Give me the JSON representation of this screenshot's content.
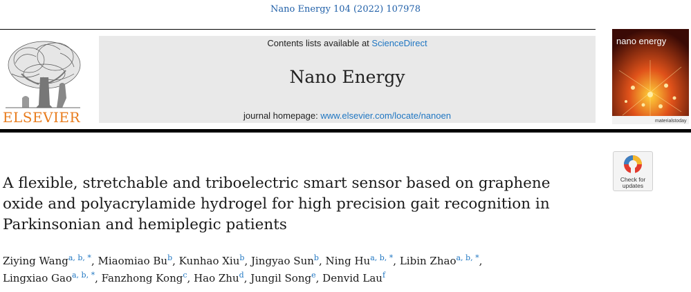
{
  "header": {
    "citation": "Nano Energy 104 (2022) 107978"
  },
  "publisher": {
    "logo_icon": "elsevier-tree-icon",
    "name": "ELSEVIER",
    "brand_color": "#e87b1c"
  },
  "banner": {
    "contents_prefix": "Contents lists available at ",
    "contents_link": "ScienceDirect",
    "journal_title": "Nano Energy",
    "homepage_prefix": "journal homepage: ",
    "homepage_link": "www.elsevier.com/locate/nanoen",
    "link_color": "#1f76c2"
  },
  "cover": {
    "title": "nano energy",
    "footer": "materialstoday"
  },
  "badge": {
    "icon": "crossmark-icon",
    "line1": "Check for",
    "line2": "updates"
  },
  "article": {
    "title_lines": [
      "A flexible, stretchable and triboelectric smart sensor based on graphene",
      "oxide and polyacrylamide hydrogel for high precision gait recognition in",
      "Parkinsonian and hemiplegic patients"
    ],
    "authors": [
      [
        {
          "name": "Ziying Wang",
          "aff": "a, b, *"
        },
        {
          "name": "Miaomiao Bu",
          "aff": "b"
        },
        {
          "name": "Kunhao Xiu",
          "aff": "b"
        },
        {
          "name": "Jingyao Sun",
          "aff": "b"
        },
        {
          "name": "Ning Hu",
          "aff": "a, b, *"
        },
        {
          "name": "Libin Zhao",
          "aff": "a, b, *"
        }
      ],
      [
        {
          "name": "Lingxiao Gao",
          "aff": "a, b, *"
        },
        {
          "name": "Fanzhong Kong",
          "aff": "c"
        },
        {
          "name": "Hao Zhu",
          "aff": "d"
        },
        {
          "name": "Jungil Song",
          "aff": "e"
        },
        {
          "name": "Denvid Lau",
          "aff": "f"
        }
      ]
    ]
  }
}
